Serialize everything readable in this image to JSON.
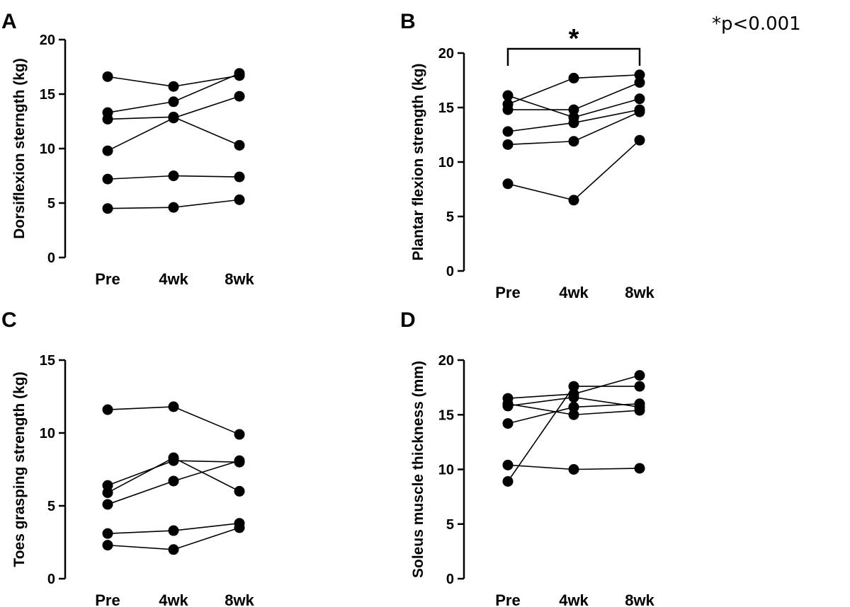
{
  "note": "*p<0.001",
  "chart_data": [
    {
      "panel": "A",
      "type": "line",
      "categories": [
        "Pre",
        "4wk",
        "8wk"
      ],
      "ylabel": "Dorsiflexion sterngth (kg)",
      "ylim": [
        0,
        20
      ],
      "yticks": [
        0,
        5,
        10,
        15,
        20
      ],
      "series": [
        {
          "values": [
            16.6,
            15.7,
            16.7
          ]
        },
        {
          "values": [
            13.3,
            14.3,
            16.9
          ]
        },
        {
          "values": [
            12.7,
            12.9,
            10.3
          ]
        },
        {
          "values": [
            9.8,
            12.8,
            14.8
          ]
        },
        {
          "values": [
            7.2,
            7.5,
            7.4
          ]
        },
        {
          "values": [
            4.5,
            4.6,
            5.3
          ]
        }
      ]
    },
    {
      "panel": "B",
      "type": "line",
      "categories": [
        "Pre",
        "4wk",
        "8wk"
      ],
      "ylabel": "Plantar flexion strength (kg)",
      "ylim": [
        0,
        20
      ],
      "yticks": [
        0,
        5,
        10,
        15,
        20
      ],
      "significance": {
        "from": "Pre",
        "to": "8wk",
        "label": "*"
      },
      "series": [
        {
          "values": [
            16.1,
            14.1,
            15.8
          ]
        },
        {
          "values": [
            15.3,
            17.7,
            18.0
          ]
        },
        {
          "values": [
            14.8,
            14.8,
            17.3
          ]
        },
        {
          "values": [
            12.8,
            13.6,
            14.8
          ]
        },
        {
          "values": [
            11.6,
            11.9,
            14.6
          ]
        },
        {
          "values": [
            8.0,
            6.5,
            12.0
          ]
        }
      ]
    },
    {
      "panel": "C",
      "type": "line",
      "categories": [
        "Pre",
        "4wk",
        "8wk"
      ],
      "ylabel": "Toes grasping strength (kg)",
      "ylim": [
        0,
        15
      ],
      "yticks": [
        0,
        5,
        10,
        15
      ],
      "series": [
        {
          "values": [
            11.6,
            11.8,
            9.9
          ]
        },
        {
          "values": [
            6.4,
            8.1,
            8.0
          ]
        },
        {
          "values": [
            5.9,
            8.3,
            6.0
          ]
        },
        {
          "values": [
            5.1,
            6.7,
            8.1
          ]
        },
        {
          "values": [
            3.1,
            3.3,
            3.8
          ]
        },
        {
          "values": [
            2.3,
            2.0,
            3.5
          ]
        }
      ]
    },
    {
      "panel": "D",
      "type": "line",
      "categories": [
        "Pre",
        "4wk",
        "8wk"
      ],
      "ylabel": "Soleus muscle thickness (mm)",
      "ylim": [
        0,
        20
      ],
      "yticks": [
        0,
        5,
        10,
        15,
        20
      ],
      "series": [
        {
          "values": [
            16.5,
            16.9,
            18.6
          ]
        },
        {
          "values": [
            16.0,
            15.0,
            15.4
          ]
        },
        {
          "values": [
            15.8,
            16.6,
            15.7
          ]
        },
        {
          "values": [
            14.2,
            15.7,
            16.0
          ]
        },
        {
          "values": [
            10.4,
            10.0,
            10.1
          ]
        },
        {
          "values": [
            8.9,
            17.6,
            17.6
          ]
        }
      ]
    }
  ]
}
